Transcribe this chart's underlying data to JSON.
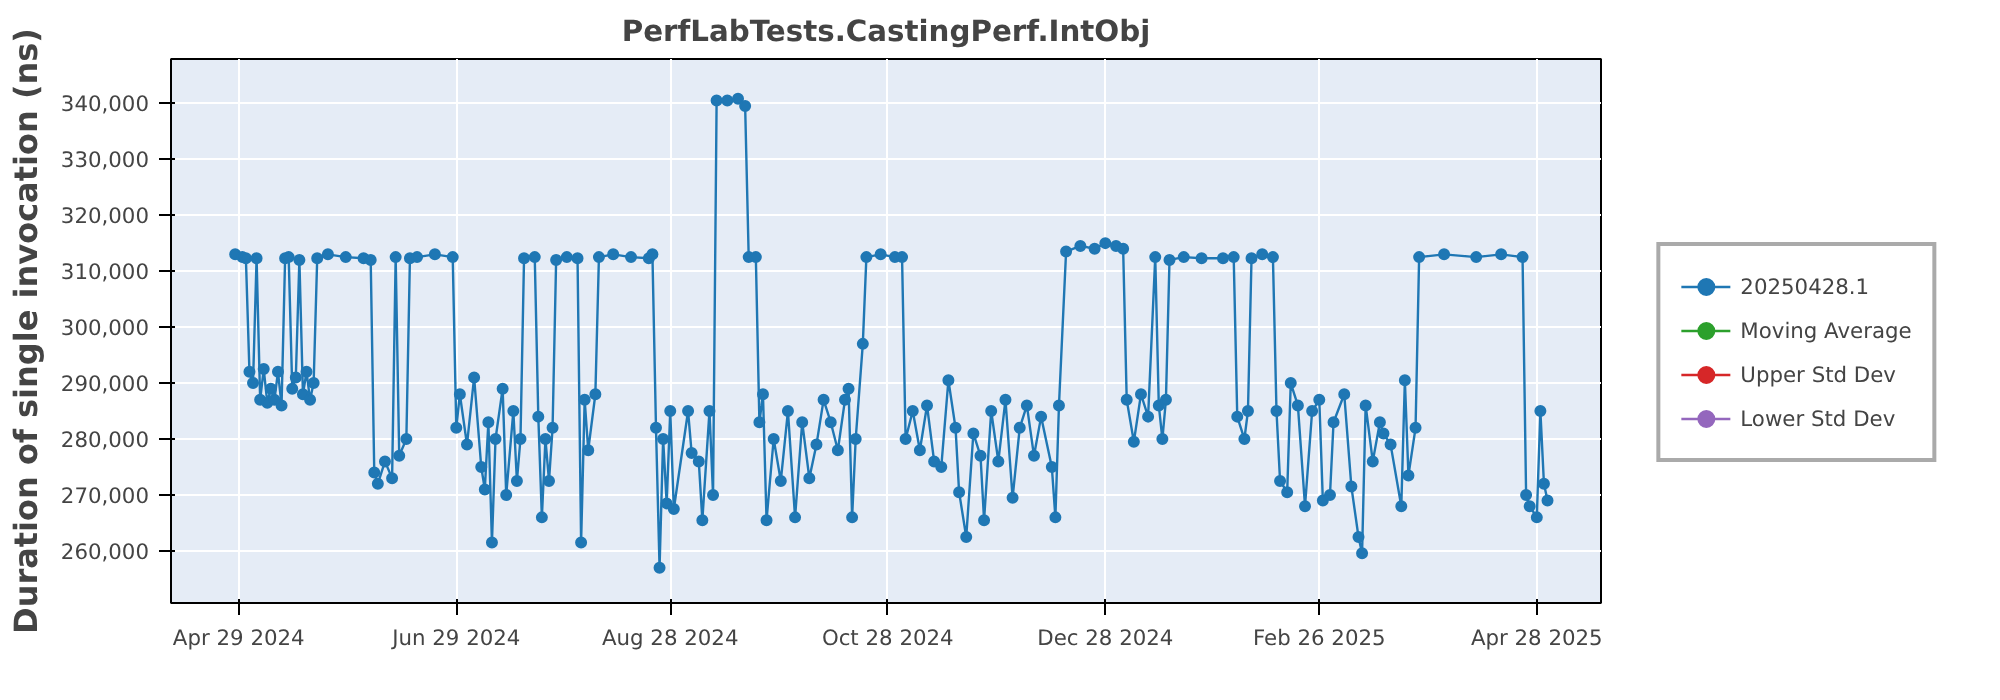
{
  "chart_data": {
    "type": "line",
    "title": "PerfLabTests.CastingPerf.IntObj",
    "ylabel": "Duration of single invocation (ns)",
    "x": [
      "2024-04-28",
      "2024-04-30",
      "2024-05-01",
      "2024-05-02",
      "2024-05-03",
      "2024-05-04",
      "2024-05-05",
      "2024-05-06",
      "2024-05-07",
      "2024-05-08",
      "2024-05-09",
      "2024-05-10",
      "2024-05-11",
      "2024-05-12",
      "2024-05-13",
      "2024-05-14",
      "2024-05-15",
      "2024-05-16",
      "2024-05-17",
      "2024-05-18",
      "2024-05-19",
      "2024-05-20",
      "2024-05-21",
      "2024-05-24",
      "2024-05-29",
      "2024-06-03",
      "2024-06-05",
      "2024-06-06",
      "2024-06-07",
      "2024-06-09",
      "2024-06-11",
      "2024-06-12",
      "2024-06-13",
      "2024-06-15",
      "2024-06-16",
      "2024-06-18",
      "2024-06-23",
      "2024-06-28",
      "2024-06-29",
      "2024-06-30",
      "2024-07-02",
      "2024-07-04",
      "2024-07-06",
      "2024-07-07",
      "2024-07-08",
      "2024-07-09",
      "2024-07-10",
      "2024-07-12",
      "2024-07-13",
      "2024-07-15",
      "2024-07-16",
      "2024-07-17",
      "2024-07-18",
      "2024-07-21",
      "2024-07-22",
      "2024-07-23",
      "2024-07-24",
      "2024-07-25",
      "2024-07-26",
      "2024-07-27",
      "2024-07-30",
      "2024-08-02",
      "2024-08-03",
      "2024-08-04",
      "2024-08-05",
      "2024-08-07",
      "2024-08-08",
      "2024-08-12",
      "2024-08-17",
      "2024-08-22",
      "2024-08-23",
      "2024-08-24",
      "2024-08-25",
      "2024-08-26",
      "2024-08-27",
      "2024-08-28",
      "2024-08-29",
      "2024-09-02",
      "2024-09-03",
      "2024-09-05",
      "2024-09-06",
      "2024-09-08",
      "2024-09-09",
      "2024-09-10",
      "2024-09-13",
      "2024-09-16",
      "2024-09-18",
      "2024-09-19",
      "2024-09-21",
      "2024-09-22",
      "2024-09-23",
      "2024-09-24",
      "2024-09-26",
      "2024-09-28",
      "2024-09-30",
      "2024-10-02",
      "2024-10-04",
      "2024-10-06",
      "2024-10-08",
      "2024-10-10",
      "2024-10-12",
      "2024-10-14",
      "2024-10-16",
      "2024-10-17",
      "2024-10-18",
      "2024-10-19",
      "2024-10-21",
      "2024-10-22",
      "2024-10-26",
      "2024-10-30",
      "2024-11-01",
      "2024-11-02",
      "2024-11-04",
      "2024-11-06",
      "2024-11-08",
      "2024-11-10",
      "2024-11-12",
      "2024-11-14",
      "2024-11-16",
      "2024-11-17",
      "2024-11-19",
      "2024-11-21",
      "2024-11-23",
      "2024-11-24",
      "2024-11-26",
      "2024-11-28",
      "2024-11-30",
      "2024-12-02",
      "2024-12-04",
      "2024-12-06",
      "2024-12-08",
      "2024-12-10",
      "2024-12-13",
      "2024-12-14",
      "2024-12-15",
      "2024-12-17",
      "2024-12-21",
      "2024-12-25",
      "2024-12-28",
      "2024-12-31",
      "2025-01-02",
      "2025-01-03",
      "2025-01-05",
      "2025-01-07",
      "2025-01-09",
      "2025-01-11",
      "2025-01-12",
      "2025-01-13",
      "2025-01-14",
      "2025-01-15",
      "2025-01-19",
      "2025-01-24",
      "2025-01-30",
      "2025-02-02",
      "2025-02-03",
      "2025-02-05",
      "2025-02-06",
      "2025-02-07",
      "2025-02-10",
      "2025-02-13",
      "2025-02-14",
      "2025-02-15",
      "2025-02-17",
      "2025-02-18",
      "2025-02-20",
      "2025-02-22",
      "2025-02-24",
      "2025-02-26",
      "2025-02-27",
      "2025-03-01",
      "2025-03-02",
      "2025-03-05",
      "2025-03-07",
      "2025-03-09",
      "2025-03-10",
      "2025-03-11",
      "2025-03-13",
      "2025-03-15",
      "2025-03-16",
      "2025-03-18",
      "2025-03-21",
      "2025-03-22",
      "2025-03-23",
      "2025-03-25",
      "2025-03-26",
      "2025-04-02",
      "2025-04-11",
      "2025-04-18",
      "2025-04-24",
      "2025-04-25",
      "2025-04-26",
      "2025-04-28",
      "2025-04-29",
      "2025-04-30",
      "2025-05-01"
    ],
    "series": [
      {
        "name": "20250428.1",
        "color": "#1f77b4",
        "values": [
          313000,
          312500,
          312300,
          292000,
          290000,
          312300,
          287000,
          292500,
          286500,
          289000,
          287000,
          292000,
          286000,
          312300,
          312500,
          289000,
          291000,
          312000,
          288000,
          292000,
          287000,
          290000,
          312300,
          313000,
          312500,
          312300,
          312000,
          274000,
          272000,
          276000,
          273000,
          312500,
          277000,
          280000,
          312300,
          312500,
          313000,
          312500,
          282000,
          288000,
          279000,
          291000,
          275000,
          271000,
          283000,
          261500,
          280000,
          289000,
          270000,
          285000,
          272500,
          280000,
          312300,
          312500,
          284000,
          266000,
          280000,
          272500,
          282000,
          312000,
          312500,
          312300,
          261500,
          287000,
          278000,
          288000,
          312500,
          313000,
          312500,
          312300,
          313000,
          282000,
          257000,
          280000,
          268500,
          285000,
          267500,
          285000,
          277500,
          276000,
          265500,
          285000,
          270000,
          340500,
          340500,
          340800,
          339500,
          312500,
          312500,
          283000,
          288000,
          265500,
          280000,
          272500,
          285000,
          266000,
          283000,
          273000,
          279000,
          287000,
          283000,
          278000,
          287000,
          289000,
          266000,
          280000,
          297000,
          312500,
          313000,
          312500,
          312500,
          280000,
          285000,
          278000,
          286000,
          276000,
          275000,
          290500,
          282000,
          270500,
          262500,
          281000,
          277000,
          265500,
          285000,
          276000,
          287000,
          269500,
          282000,
          286000,
          277000,
          284000,
          275000,
          266000,
          286000,
          313500,
          314500,
          314000,
          315000,
          314500,
          314000,
          287000,
          279500,
          288000,
          284000,
          312500,
          286000,
          280000,
          287000,
          312000,
          312500,
          312300,
          312300,
          312500,
          284000,
          280000,
          285000,
          312300,
          313000,
          312500,
          285000,
          272500,
          270500,
          290000,
          286000,
          268000,
          285000,
          287000,
          269000,
          270000,
          283000,
          288000,
          271500,
          262500,
          259600,
          286000,
          276000,
          283000,
          281000,
          279000,
          268000,
          290500,
          273500,
          282000,
          312500,
          313000,
          312500,
          313000,
          312500,
          270000,
          268000,
          266000,
          285000,
          272000,
          269000
        ]
      },
      {
        "name": "Moving Average",
        "color": "#2ca02c",
        "values": [
          null,
          null,
          null,
          null,
          null,
          null,
          null,
          null,
          null,
          null,
          null,
          null,
          null,
          null,
          null,
          null,
          null,
          null,
          null,
          null,
          null,
          null,
          null,
          null,
          null,
          null,
          null,
          null,
          null,
          null,
          null,
          null,
          null,
          null,
          null,
          null,
          null,
          null,
          null,
          null,
          null,
          null,
          null,
          null,
          null,
          null,
          null,
          null,
          null,
          null,
          null,
          null,
          null,
          null,
          null,
          null,
          null,
          null,
          null,
          null,
          null,
          null,
          null,
          null,
          null,
          null,
          null,
          null,
          null,
          null,
          null,
          null,
          null,
          null,
          null,
          null,
          null,
          null,
          null,
          null,
          null,
          null,
          null,
          null,
          null,
          null,
          null,
          null,
          null,
          null,
          null,
          null,
          null,
          null,
          null,
          null,
          null,
          null,
          null,
          null,
          null,
          null,
          null,
          null,
          null,
          null,
          null,
          null,
          null,
          null,
          null,
          null,
          null,
          null,
          null,
          null,
          null,
          null,
          null,
          null,
          null,
          null,
          null,
          null,
          null,
          null,
          null,
          null,
          null,
          null,
          null,
          null,
          null,
          null,
          null,
          null,
          null,
          null,
          null,
          null,
          null,
          null,
          null,
          null,
          null,
          null,
          null,
          null,
          null,
          null,
          null,
          null,
          null,
          null,
          null,
          null,
          null,
          null,
          null,
          null,
          null,
          null,
          null,
          null,
          null,
          null,
          null,
          null,
          null,
          null,
          null,
          null,
          null,
          null,
          null,
          null,
          null,
          null,
          null,
          null,
          null,
          null,
          null,
          null,
          null,
          null,
          null,
          null,
          null,
          null,
          null,
          null,
          null,
          null,
          null
        ]
      },
      {
        "name": "Upper Std Dev",
        "color": "#d62728",
        "values": [
          null,
          null,
          null,
          null,
          null,
          null,
          null,
          null,
          null,
          null,
          null,
          null,
          null,
          null,
          null,
          null,
          null,
          null,
          null,
          null,
          null,
          null,
          null,
          null,
          null,
          null,
          null,
          null,
          null,
          null,
          null,
          null,
          null,
          null,
          null,
          null,
          null,
          null,
          null,
          null,
          null,
          null,
          null,
          null,
          null,
          null,
          null,
          null,
          null,
          null,
          null,
          null,
          null,
          null,
          null,
          null,
          null,
          null,
          null,
          null,
          null,
          null,
          null,
          null,
          null,
          null,
          null,
          null,
          null,
          null,
          null,
          null,
          null,
          null,
          null,
          null,
          null,
          null,
          null,
          null,
          null,
          null,
          null,
          null,
          null,
          null,
          null,
          null,
          null,
          null,
          null,
          null,
          null,
          null,
          null,
          null,
          null,
          null,
          null,
          null,
          null,
          null,
          null,
          null,
          null,
          null,
          null,
          null,
          null,
          null,
          null,
          null,
          null,
          null,
          null,
          null,
          null,
          null,
          null,
          null,
          null,
          null,
          null,
          null,
          null,
          null,
          null,
          null,
          null,
          null,
          null,
          null,
          null,
          null,
          null,
          null,
          null,
          null,
          null,
          null,
          null,
          null,
          null,
          null,
          null,
          null,
          null,
          null,
          null,
          null,
          null,
          null,
          null,
          null,
          null,
          null,
          null,
          null,
          null,
          null,
          null,
          null,
          null,
          null,
          null,
          null,
          null,
          null,
          null,
          null,
          null,
          null,
          null,
          null,
          null,
          null,
          null,
          null,
          null,
          null,
          null,
          null,
          null,
          null,
          null,
          null,
          null,
          null,
          null,
          null,
          null,
          null,
          null,
          null,
          null
        ]
      },
      {
        "name": "Lower Std Dev",
        "color": "#9467bd",
        "values": [
          null,
          null,
          null,
          null,
          null,
          null,
          null,
          null,
          null,
          null,
          null,
          null,
          null,
          null,
          null,
          null,
          null,
          null,
          null,
          null,
          null,
          null,
          null,
          null,
          null,
          null,
          null,
          null,
          null,
          null,
          null,
          null,
          null,
          null,
          null,
          null,
          null,
          null,
          null,
          null,
          null,
          null,
          null,
          null,
          null,
          null,
          null,
          null,
          null,
          null,
          null,
          null,
          null,
          null,
          null,
          null,
          null,
          null,
          null,
          null,
          null,
          null,
          null,
          null,
          null,
          null,
          null,
          null,
          null,
          null,
          null,
          null,
          null,
          null,
          null,
          null,
          null,
          null,
          null,
          null,
          null,
          null,
          null,
          null,
          null,
          null,
          null,
          null,
          null,
          null,
          null,
          null,
          null,
          null,
          null,
          null,
          null,
          null,
          null,
          null,
          null,
          null,
          null,
          null,
          null,
          null,
          null,
          null,
          null,
          null,
          null,
          null,
          null,
          null,
          null,
          null,
          null,
          null,
          null,
          null,
          null,
          null,
          null,
          null,
          null,
          null,
          null,
          null,
          null,
          null,
          null,
          null,
          null,
          null,
          null,
          null,
          null,
          null,
          null,
          null,
          null,
          null,
          null,
          null,
          null,
          null,
          null,
          null,
          null,
          null,
          null,
          null,
          null,
          null,
          null,
          null,
          null,
          null,
          null,
          null,
          null,
          null,
          null,
          null,
          null,
          null,
          null,
          null,
          null,
          null,
          null,
          null,
          null,
          null,
          null,
          null,
          null,
          null,
          null,
          null,
          null,
          null,
          null,
          null,
          null,
          null,
          null,
          null,
          null,
          null,
          null,
          null,
          null,
          null,
          null
        ]
      }
    ],
    "xlim": [
      "2024-04-10",
      "2025-05-16"
    ],
    "xticks": [
      {
        "value": "2024-04-29",
        "label": "Apr 29 2024"
      },
      {
        "value": "2024-06-29",
        "label": "Jun 29 2024"
      },
      {
        "value": "2024-08-28",
        "label": "Aug 28 2024"
      },
      {
        "value": "2024-10-28",
        "label": "Oct 28 2024"
      },
      {
        "value": "2024-12-28",
        "label": "Dec 28 2024"
      },
      {
        "value": "2025-02-26",
        "label": "Feb 26 2025"
      },
      {
        "value": "2025-04-28",
        "label": "Apr 28 2025"
      }
    ],
    "ylim": [
      250700,
      347900
    ],
    "yticks": [
      {
        "value": 260000,
        "label": "260,000"
      },
      {
        "value": 270000,
        "label": "270,000"
      },
      {
        "value": 280000,
        "label": "280,000"
      },
      {
        "value": 290000,
        "label": "290,000"
      },
      {
        "value": 300000,
        "label": "300,000"
      },
      {
        "value": 310000,
        "label": "310,000"
      },
      {
        "value": 320000,
        "label": "320,000"
      },
      {
        "value": 330000,
        "label": "330,000"
      },
      {
        "value": 340000,
        "label": "340,000"
      }
    ],
    "grid": true,
    "legend": "right",
    "marker": "circle",
    "line_style": "solid"
  }
}
